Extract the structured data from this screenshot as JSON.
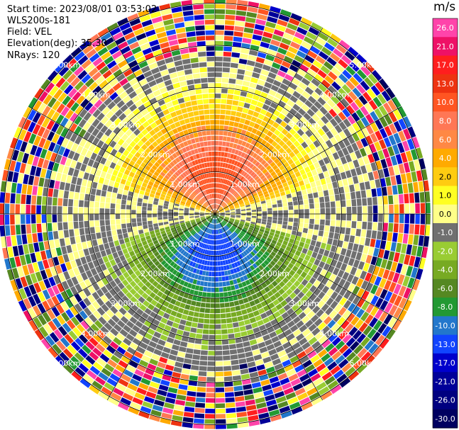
{
  "header": {
    "start_time": "Start time: 2023/08/01 03:53:02",
    "instrument": "WLS200s-181",
    "field": "Field: VEL",
    "elevation": "Elevation(deg): 35.30",
    "nrays": "NRays: 120"
  },
  "colorbar": {
    "unit": "m/s",
    "ticks": [
      "26.0",
      "21.0",
      "17.0",
      "13.0",
      "10.0",
      "8.0",
      "6.0",
      "4.0",
      "2.0",
      "1.0",
      "0.0",
      "-1.0",
      "-2.0",
      "-4.0",
      "-6.0",
      "-8.0",
      "-10.0",
      "-13.0",
      "-17.0",
      "-21.0",
      "-26.0",
      "-30.0"
    ],
    "colors": [
      "#ff44aa",
      "#ee1166",
      "#ff1e1e",
      "#ee3311",
      "#ff5522",
      "#ff7755",
      "#ff8844",
      "#ffaa00",
      "#ffcc11",
      "#ffff22",
      "#ffff88",
      "#707070",
      "#99cc33",
      "#77aa22",
      "#558822",
      "#229933",
      "#2277cc",
      "#1144ff",
      "#0000cc",
      "#000099",
      "#000080",
      "#000060"
    ]
  },
  "chart_data": {
    "type": "heatmap",
    "projection": "polar PPI",
    "field": "VEL",
    "units": "m/s",
    "nrays": 120,
    "range_rings_km": [
      1.0,
      2.0,
      3.0,
      4.0,
      5.0
    ],
    "ring_labels": [
      "1.00km",
      "2.00km",
      "3.00km",
      "4.00km",
      "5.00km"
    ],
    "azimuth_lines_deg": [
      0,
      30,
      60,
      90,
      120,
      150,
      180,
      210,
      240,
      270,
      300,
      330
    ],
    "grid": true,
    "regions": [
      {
        "sector": "north",
        "range_km": [
          0.0,
          1.0
        ],
        "value_ms": 10.0
      },
      {
        "sector": "north",
        "range_km": [
          1.0,
          2.0
        ],
        "value_ms": 6.0
      },
      {
        "sector": "north",
        "range_km": [
          2.0,
          3.5
        ],
        "value_ms": 1.0
      },
      {
        "sector": "south",
        "range_km": [
          0.0,
          1.0
        ],
        "value_ms": -10.0
      },
      {
        "sector": "south",
        "range_km": [
          1.0,
          2.0
        ],
        "value_ms": -6.0
      },
      {
        "sector": "south",
        "range_km": [
          2.0,
          3.5
        ],
        "value_ms": -2.0
      },
      {
        "sector": "east-west",
        "range_km": [
          0.0,
          3.5
        ],
        "value_ms": 0.0
      },
      {
        "sector": "all",
        "range_km": [
          3.5,
          5.1
        ],
        "value_ms": "noise"
      }
    ]
  }
}
